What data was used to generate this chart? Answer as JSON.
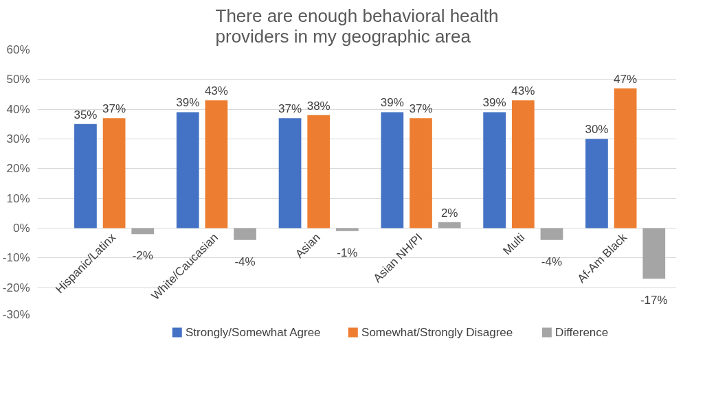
{
  "chart_data": {
    "type": "bar",
    "title": "There are enough behavioral health providers in my geographic area",
    "categories": [
      "Hispanic/Latinx",
      "White/Caucasian",
      "Asian",
      "Asian NH/PI",
      "Multi",
      "Af-Am Black"
    ],
    "series": [
      {
        "name": "Strongly/Somewhat Agree",
        "color": "#4472c4",
        "values": [
          35,
          39,
          37,
          39,
          39,
          30
        ],
        "value_labels": [
          "35%",
          "39%",
          "37%",
          "39%",
          "39%",
          "30%"
        ]
      },
      {
        "name": "Somewhat/Strongly Disagree",
        "color": "#ed7d31",
        "values": [
          37,
          43,
          38,
          37,
          43,
          47
        ],
        "value_labels": [
          "37%",
          "43%",
          "38%",
          "37%",
          "43%",
          "47%"
        ]
      },
      {
        "name": "Difference",
        "color": "#a5a5a5",
        "values": [
          -2,
          -4,
          -1,
          2,
          -4,
          -17
        ],
        "value_labels": [
          "-2%",
          "-4%",
          "-1%",
          "2%",
          "-4%",
          "-17%"
        ]
      }
    ],
    "ylim": [
      -30,
      60
    ],
    "yticks": [
      {
        "value": -30,
        "label": "-30%"
      },
      {
        "value": -20,
        "label": "-20%"
      },
      {
        "value": -10,
        "label": "-10%"
      },
      {
        "value": 0,
        "label": "0%"
      },
      {
        "value": 10,
        "label": "10%"
      },
      {
        "value": 20,
        "label": "20%"
      },
      {
        "value": 30,
        "label": "30%"
      },
      {
        "value": 40,
        "label": "40%"
      },
      {
        "value": 50,
        "label": "50%"
      },
      {
        "value": 60,
        "label": "60%"
      }
    ],
    "grid": "y",
    "legend": "bottom"
  }
}
